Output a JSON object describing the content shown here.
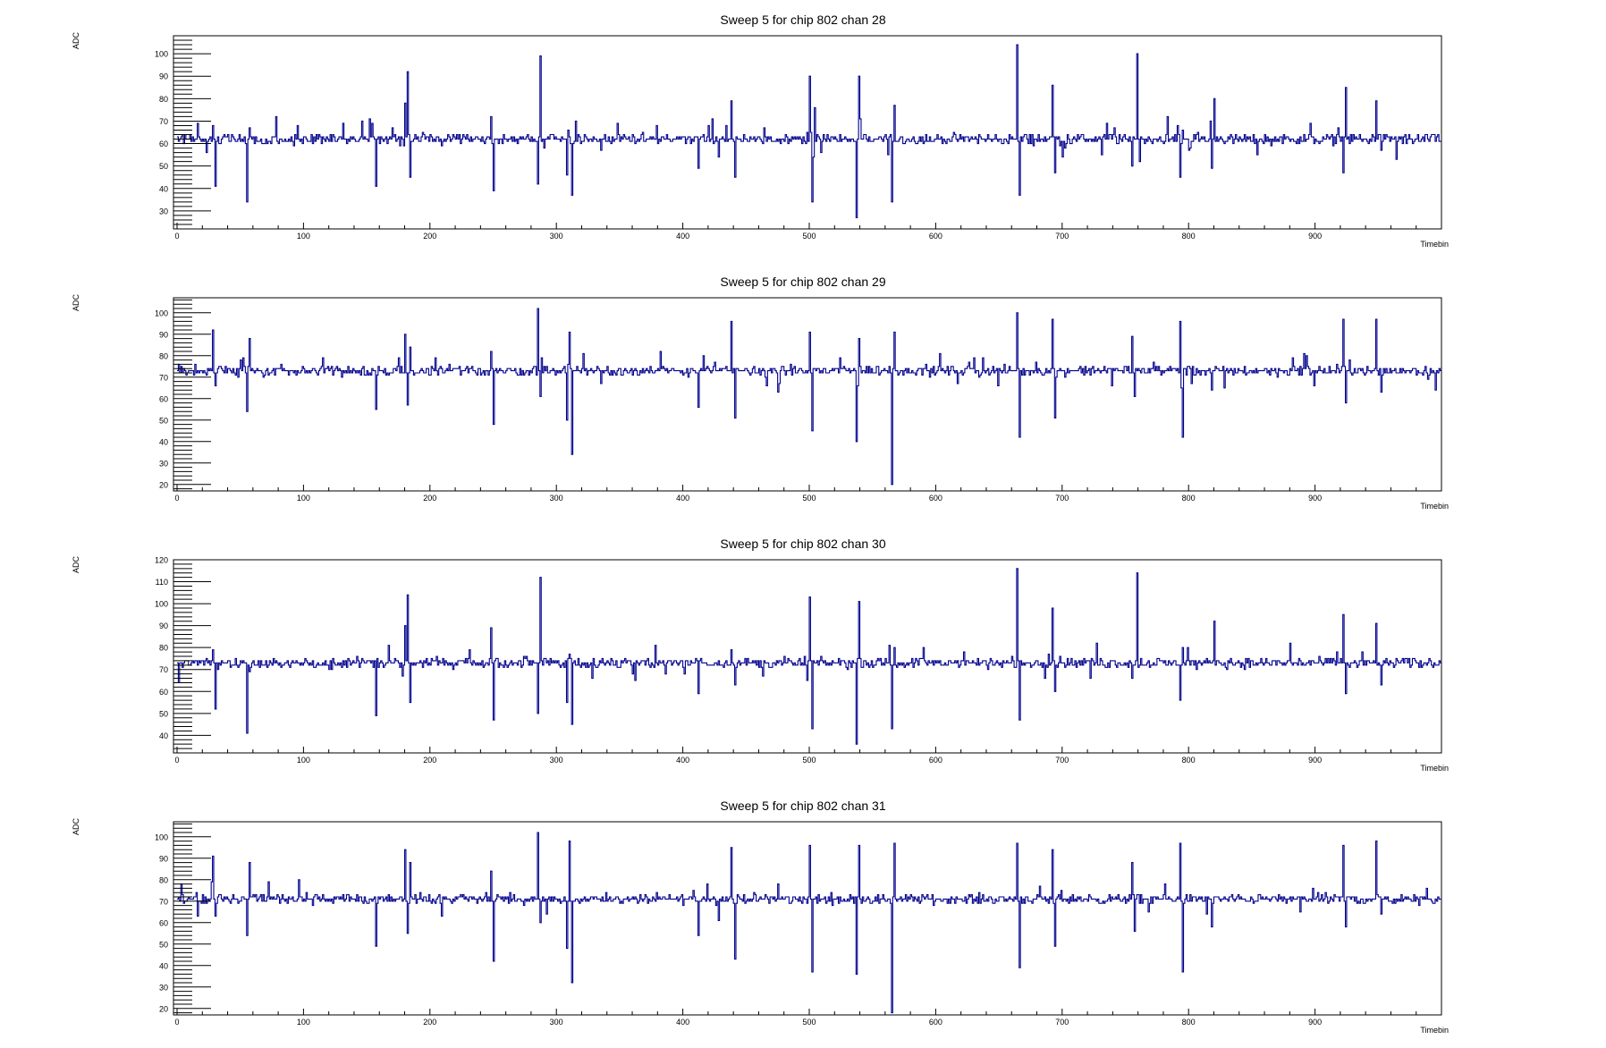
{
  "chart_data": [
    {
      "type": "line",
      "title": "Sweep 5 for chip 802 chan 28",
      "xlabel": "Timebin",
      "ylabel": "ADC",
      "xlim": [
        0,
        1000
      ],
      "ylim": [
        22,
        108
      ],
      "xticks": [
        0,
        100,
        200,
        300,
        400,
        500,
        600,
        700,
        800,
        900
      ],
      "yticks": [
        30,
        40,
        50,
        60,
        70,
        80,
        90,
        100
      ],
      "baseline": 62,
      "seed": 28,
      "spikes": [
        [
          28,
          68
        ],
        [
          30,
          41
        ],
        [
          55,
          34
        ],
        [
          57,
          67
        ],
        [
          157,
          41
        ],
        [
          180,
          78
        ],
        [
          182,
          92
        ],
        [
          184,
          45
        ],
        [
          248,
          72
        ],
        [
          250,
          39
        ],
        [
          285,
          42
        ],
        [
          287,
          99
        ],
        [
          290,
          58
        ],
        [
          308,
          46
        ],
        [
          312,
          37
        ],
        [
          315,
          70
        ],
        [
          412,
          49
        ],
        [
          438,
          79
        ],
        [
          441,
          45
        ],
        [
          500,
          90
        ],
        [
          502,
          34
        ],
        [
          504,
          76
        ],
        [
          537,
          27
        ],
        [
          539,
          90
        ],
        [
          565,
          34
        ],
        [
          567,
          77
        ],
        [
          664,
          104
        ],
        [
          666,
          37
        ],
        [
          692,
          86
        ],
        [
          694,
          47
        ],
        [
          755,
          50
        ],
        [
          759,
          100
        ],
        [
          761,
          52
        ],
        [
          793,
          45
        ],
        [
          795,
          66
        ],
        [
          818,
          49
        ],
        [
          820,
          80
        ],
        [
          922,
          47
        ],
        [
          924,
          85
        ],
        [
          948,
          79
        ],
        [
          952,
          57
        ]
      ],
      "series": [
        {
          "color": "#00008B"
        }
      ],
      "grid": false
    },
    {
      "type": "line",
      "title": "Sweep 5 for chip 802 chan 29",
      "xlabel": "Timebin",
      "ylabel": "ADC",
      "xlim": [
        0,
        1000
      ],
      "ylim": [
        17,
        107
      ],
      "xticks": [
        0,
        100,
        200,
        300,
        400,
        500,
        600,
        700,
        800,
        900
      ],
      "yticks": [
        20,
        30,
        40,
        50,
        60,
        70,
        80,
        90,
        100
      ],
      "baseline": 73,
      "seed": 29,
      "spikes": [
        [
          28,
          92
        ],
        [
          30,
          66
        ],
        [
          55,
          54
        ],
        [
          57,
          88
        ],
        [
          157,
          55
        ],
        [
          180,
          90
        ],
        [
          182,
          57
        ],
        [
          184,
          84
        ],
        [
          248,
          82
        ],
        [
          250,
          48
        ],
        [
          285,
          102
        ],
        [
          287,
          61
        ],
        [
          308,
          50
        ],
        [
          310,
          91
        ],
        [
          312,
          34
        ],
        [
          412,
          56
        ],
        [
          438,
          96
        ],
        [
          441,
          51
        ],
        [
          500,
          91
        ],
        [
          502,
          45
        ],
        [
          537,
          40
        ],
        [
          539,
          88
        ],
        [
          565,
          20
        ],
        [
          567,
          91
        ],
        [
          664,
          100
        ],
        [
          666,
          42
        ],
        [
          692,
          97
        ],
        [
          694,
          51
        ],
        [
          755,
          89
        ],
        [
          757,
          61
        ],
        [
          793,
          96
        ],
        [
          795,
          42
        ],
        [
          818,
          64
        ],
        [
          922,
          97
        ],
        [
          924,
          58
        ],
        [
          948,
          97
        ],
        [
          952,
          63
        ]
      ],
      "series": [
        {
          "color": "#00008B"
        }
      ],
      "grid": false
    },
    {
      "type": "line",
      "title": "Sweep 5 for chip 802 chan 30",
      "xlabel": "Timebin",
      "ylabel": "ADC",
      "xlim": [
        0,
        1000
      ],
      "ylim": [
        32,
        120
      ],
      "xticks": [
        0,
        100,
        200,
        300,
        400,
        500,
        600,
        700,
        800,
        900
      ],
      "yticks": [
        40,
        50,
        60,
        70,
        80,
        90,
        100,
        110,
        120
      ],
      "baseline": 73,
      "seed": 30,
      "spikes": [
        [
          28,
          79
        ],
        [
          30,
          52
        ],
        [
          55,
          41
        ],
        [
          57,
          69
        ],
        [
          157,
          49
        ],
        [
          180,
          90
        ],
        [
          182,
          104
        ],
        [
          184,
          55
        ],
        [
          248,
          89
        ],
        [
          250,
          47
        ],
        [
          285,
          50
        ],
        [
          287,
          112
        ],
        [
          308,
          55
        ],
        [
          310,
          77
        ],
        [
          312,
          45
        ],
        [
          412,
          59
        ],
        [
          438,
          79
        ],
        [
          441,
          63
        ],
        [
          500,
          103
        ],
        [
          502,
          43
        ],
        [
          537,
          36
        ],
        [
          539,
          101
        ],
        [
          565,
          43
        ],
        [
          567,
          80
        ],
        [
          664,
          116
        ],
        [
          666,
          47
        ],
        [
          692,
          98
        ],
        [
          694,
          60
        ],
        [
          755,
          66
        ],
        [
          759,
          114
        ],
        [
          793,
          56
        ],
        [
          795,
          80
        ],
        [
          818,
          73
        ],
        [
          820,
          92
        ],
        [
          880,
          82
        ],
        [
          922,
          95
        ],
        [
          924,
          59
        ],
        [
          948,
          91
        ],
        [
          952,
          63
        ]
      ],
      "series": [
        {
          "color": "#00008B"
        }
      ],
      "grid": false
    },
    {
      "type": "line",
      "title": "Sweep 5 for chip 802 chan 31",
      "xlabel": "Timebin",
      "ylabel": "ADC",
      "xlim": [
        0,
        1000
      ],
      "ylim": [
        17,
        107
      ],
      "xticks": [
        0,
        100,
        200,
        300,
        400,
        500,
        600,
        700,
        800,
        900
      ],
      "yticks": [
        20,
        30,
        40,
        50,
        60,
        70,
        80,
        90,
        100
      ],
      "baseline": 71,
      "seed": 31,
      "spikes": [
        [
          28,
          91
        ],
        [
          30,
          63
        ],
        [
          55,
          54
        ],
        [
          57,
          88
        ],
        [
          157,
          49
        ],
        [
          180,
          94
        ],
        [
          182,
          55
        ],
        [
          184,
          88
        ],
        [
          248,
          84
        ],
        [
          250,
          42
        ],
        [
          285,
          102
        ],
        [
          287,
          60
        ],
        [
          308,
          48
        ],
        [
          310,
          98
        ],
        [
          312,
          32
        ],
        [
          412,
          54
        ],
        [
          438,
          95
        ],
        [
          441,
          43
        ],
        [
          500,
          96
        ],
        [
          502,
          37
        ],
        [
          537,
          36
        ],
        [
          539,
          96
        ],
        [
          565,
          18
        ],
        [
          567,
          97
        ],
        [
          664,
          97
        ],
        [
          666,
          39
        ],
        [
          692,
          94
        ],
        [
          694,
          49
        ],
        [
          755,
          88
        ],
        [
          757,
          56
        ],
        [
          793,
          97
        ],
        [
          795,
          37
        ],
        [
          818,
          58
        ],
        [
          922,
          96
        ],
        [
          924,
          58
        ],
        [
          948,
          98
        ],
        [
          952,
          64
        ]
      ],
      "series": [
        {
          "color": "#00008B"
        }
      ],
      "grid": false
    }
  ]
}
